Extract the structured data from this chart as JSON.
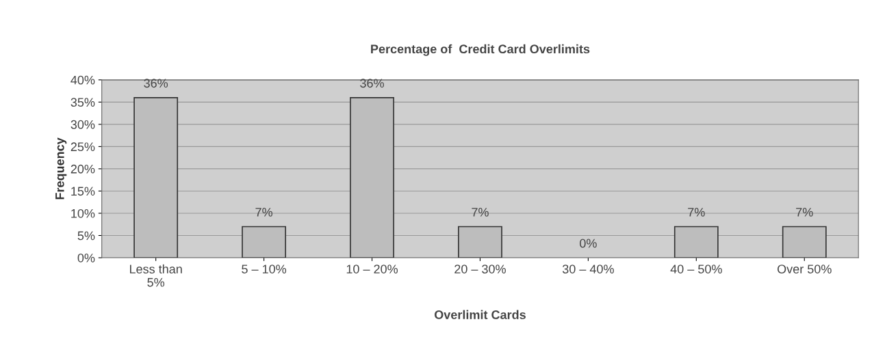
{
  "chart_data": {
    "type": "bar",
    "title": "Percentage of  Credit Card Overlimits",
    "xlabel": "Overlimit Cards",
    "ylabel": "Frequency",
    "categories": [
      "Less than\n5%",
      "5 – 10%",
      "10 – 20%",
      "20 – 30%",
      "30 – 40%",
      "40 – 50%",
      "Over 50%"
    ],
    "values": [
      36,
      7,
      36,
      7,
      0,
      7,
      7
    ],
    "value_labels": [
      "36%",
      "7%",
      "36%",
      "7%",
      "0%",
      "7%",
      "7%"
    ],
    "color": "#bdbdbd",
    "ylim": [
      0,
      40
    ],
    "yticks": [
      {
        "value": 0,
        "label": "0%"
      },
      {
        "value": 5,
        "label": "5%"
      },
      {
        "value": 10,
        "label": "10%"
      },
      {
        "value": 15,
        "label": "15%"
      },
      {
        "value": 20,
        "label": "20%"
      },
      {
        "value": 25,
        "label": "25%"
      },
      {
        "value": 30,
        "label": "30%"
      },
      {
        "value": 35,
        "label": "35%"
      },
      {
        "value": 40,
        "label": "40%"
      }
    ],
    "grid": "y"
  }
}
